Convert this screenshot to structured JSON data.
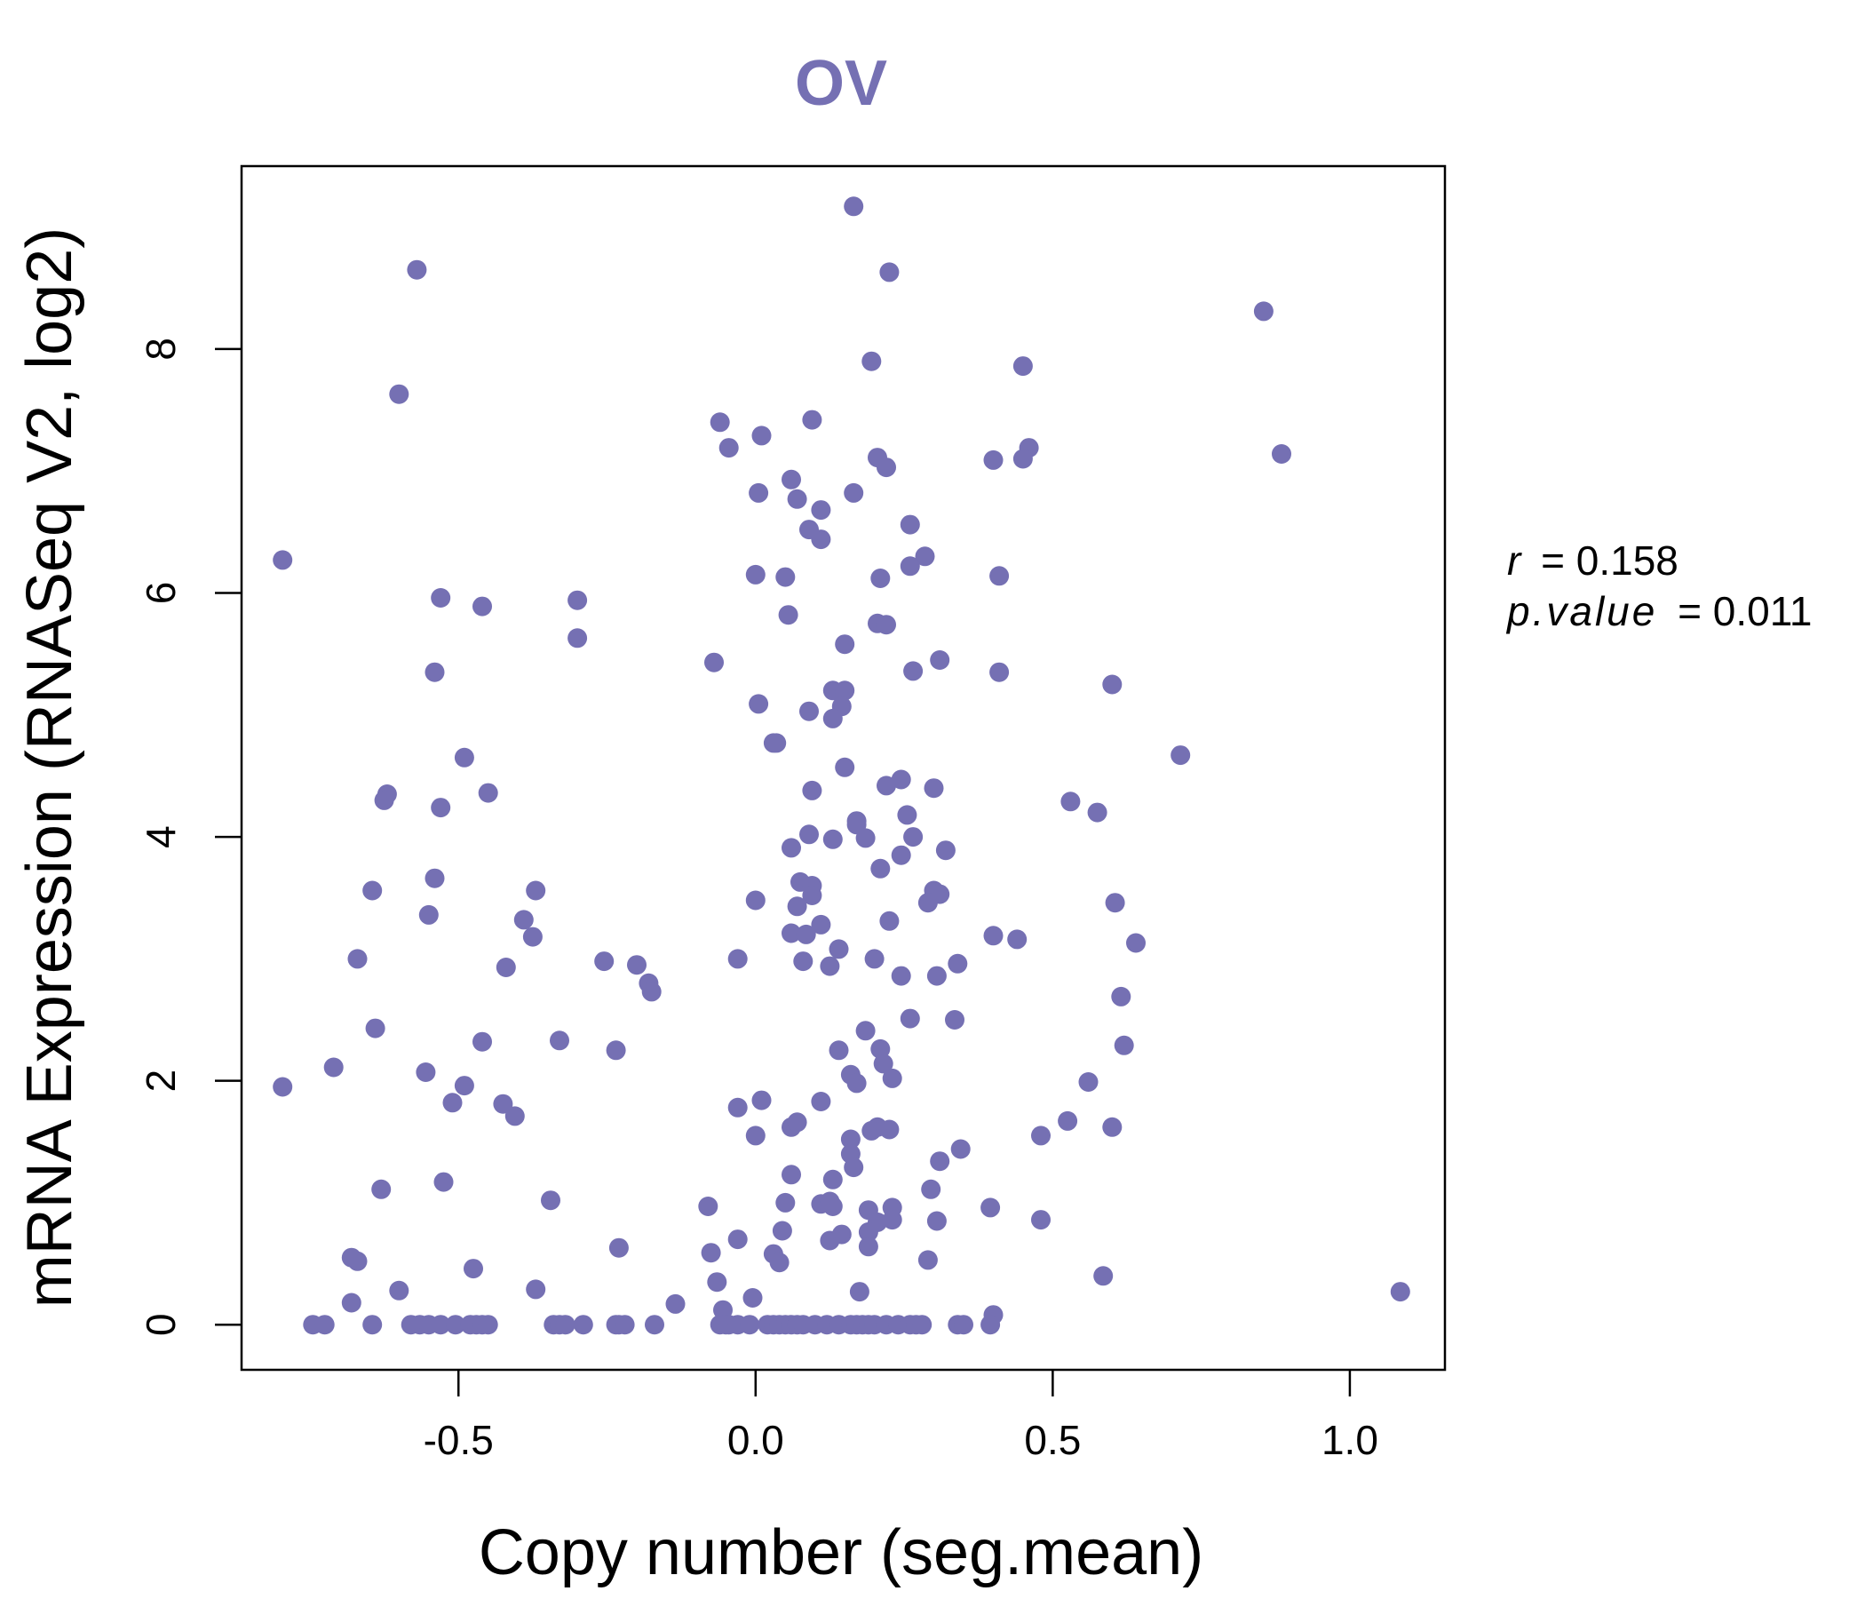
{
  "chart_data": {
    "type": "scatter",
    "title": "OV",
    "xlabel": "Copy number (seg.mean)",
    "ylabel": "mRNA Expression (RNASeq V2, log2)",
    "xlim": [
      -0.865,
      1.16
    ],
    "ylim": [
      -0.37,
      9.5
    ],
    "x_ticks": [
      -0.5,
      0.0,
      0.5,
      1.0
    ],
    "x_tick_labels": [
      "-0.5",
      "0.0",
      "0.5",
      "1.0"
    ],
    "y_ticks": [
      0,
      2,
      4,
      6,
      8
    ],
    "y_tick_labels": [
      "0",
      "2",
      "4",
      "6",
      "8"
    ],
    "grid": false,
    "legend": "none",
    "point_color": "#7570b3",
    "stats": {
      "r_label": "r",
      "r_value": "= 0.158",
      "p_label": "p.value",
      "p_value": "= 0.011"
    },
    "points": [
      [
        -0.796,
        6.27
      ],
      [
        -0.796,
        1.95
      ],
      [
        -0.57,
        8.65
      ],
      [
        -0.6,
        7.63
      ],
      [
        -0.53,
        5.96
      ],
      [
        -0.46,
        5.89
      ],
      [
        -0.54,
        5.35
      ],
      [
        -0.49,
        4.65
      ],
      [
        -0.62,
        4.35
      ],
      [
        -0.625,
        4.3
      ],
      [
        -0.53,
        4.24
      ],
      [
        -0.45,
        4.36
      ],
      [
        -0.645,
        3.56
      ],
      [
        -0.54,
        3.66
      ],
      [
        -0.55,
        3.36
      ],
      [
        -0.37,
        3.56
      ],
      [
        -0.39,
        3.32
      ],
      [
        -0.375,
        3.18
      ],
      [
        -0.42,
        2.93
      ],
      [
        -0.67,
        3.0
      ],
      [
        -0.64,
        2.43
      ],
      [
        -0.46,
        2.32
      ],
      [
        -0.33,
        2.33
      ],
      [
        -0.71,
        2.11
      ],
      [
        -0.555,
        2.07
      ],
      [
        -0.49,
        1.96
      ],
      [
        -0.51,
        1.82
      ],
      [
        -0.425,
        1.81
      ],
      [
        -0.405,
        1.71
      ],
      [
        -0.3,
        5.94
      ],
      [
        -0.3,
        5.63
      ],
      [
        -0.255,
        2.98
      ],
      [
        -0.2,
        2.95
      ],
      [
        -0.18,
        2.8
      ],
      [
        -0.175,
        2.73
      ],
      [
        -0.235,
        2.25
      ],
      [
        -0.525,
        1.17
      ],
      [
        -0.63,
        1.11
      ],
      [
        -0.345,
        1.02
      ],
      [
        -0.68,
        0.55
      ],
      [
        -0.67,
        0.52
      ],
      [
        -0.475,
        0.46
      ],
      [
        -0.23,
        0.63
      ],
      [
        -0.6,
        0.28
      ],
      [
        -0.37,
        0.29
      ],
      [
        -0.68,
        0.18
      ],
      [
        -0.135,
        0.17
      ],
      [
        -0.06,
        7.4
      ],
      [
        -0.045,
        7.19
      ],
      [
        0.01,
        7.29
      ],
      [
        0.095,
        7.42
      ],
      [
        0.005,
        6.82
      ],
      [
        0.06,
        6.93
      ],
      [
        0.07,
        6.77
      ],
      [
        0.11,
        6.68
      ],
      [
        0.09,
        6.52
      ],
      [
        0.11,
        6.44
      ],
      [
        0.0,
        6.15
      ],
      [
        0.05,
        6.13
      ],
      [
        0.055,
        5.82
      ],
      [
        -0.07,
        5.43
      ],
      [
        0.15,
        5.58
      ],
      [
        0.13,
        5.2
      ],
      [
        0.15,
        5.2
      ],
      [
        0.145,
        5.07
      ],
      [
        0.005,
        5.09
      ],
      [
        0.09,
        5.03
      ],
      [
        0.13,
        4.97
      ],
      [
        0.03,
        4.77
      ],
      [
        0.035,
        4.77
      ],
      [
        0.15,
        4.57
      ],
      [
        0.095,
        4.38
      ],
      [
        0.17,
        4.13
      ],
      [
        0.17,
        4.1
      ],
      [
        0.09,
        4.02
      ],
      [
        0.13,
        3.98
      ],
      [
        0.06,
        3.91
      ],
      [
        0.075,
        3.63
      ],
      [
        0.095,
        3.6
      ],
      [
        0.095,
        3.52
      ],
      [
        0.0,
        3.48
      ],
      [
        0.07,
        3.43
      ],
      [
        0.11,
        3.28
      ],
      [
        0.06,
        3.21
      ],
      [
        0.085,
        3.2
      ],
      [
        0.14,
        3.08
      ],
      [
        -0.03,
        3.0
      ],
      [
        0.08,
        2.98
      ],
      [
        0.125,
        2.94
      ],
      [
        0.14,
        2.25
      ],
      [
        0.16,
        2.05
      ],
      [
        0.17,
        1.98
      ],
      [
        0.11,
        1.83
      ],
      [
        0.01,
        1.84
      ],
      [
        -0.03,
        1.78
      ],
      [
        0.06,
        1.62
      ],
      [
        0.07,
        1.66
      ],
      [
        0.0,
        1.55
      ],
      [
        0.16,
        1.52
      ],
      [
        0.16,
        1.4
      ],
      [
        0.165,
        1.29
      ],
      [
        0.06,
        1.23
      ],
      [
        0.13,
        1.19
      ],
      [
        0.05,
        1.0
      ],
      [
        0.11,
        0.99
      ],
      [
        0.13,
        0.97
      ],
      [
        0.125,
        1.01
      ],
      [
        -0.08,
        0.97
      ],
      [
        0.045,
        0.77
      ],
      [
        0.145,
        0.74
      ],
      [
        0.125,
        0.69
      ],
      [
        -0.03,
        0.7
      ],
      [
        -0.075,
        0.59
      ],
      [
        0.03,
        0.58
      ],
      [
        0.04,
        0.51
      ],
      [
        -0.065,
        0.35
      ],
      [
        -0.005,
        0.22
      ],
      [
        -0.055,
        0.12
      ],
      [
        0.195,
        7.9
      ],
      [
        0.205,
        7.11
      ],
      [
        0.22,
        7.03
      ],
      [
        0.165,
        6.82
      ],
      [
        0.26,
        6.56
      ],
      [
        0.285,
        6.3
      ],
      [
        0.26,
        6.22
      ],
      [
        0.21,
        6.12
      ],
      [
        0.205,
        5.75
      ],
      [
        0.22,
        5.74
      ],
      [
        0.31,
        5.45
      ],
      [
        0.265,
        5.36
      ],
      [
        0.245,
        4.47
      ],
      [
        0.22,
        4.42
      ],
      [
        0.3,
        4.4
      ],
      [
        0.255,
        4.18
      ],
      [
        0.185,
        3.99
      ],
      [
        0.265,
        4.0
      ],
      [
        0.32,
        3.89
      ],
      [
        0.245,
        3.85
      ],
      [
        0.21,
        3.74
      ],
      [
        0.3,
        3.56
      ],
      [
        0.31,
        3.53
      ],
      [
        0.29,
        3.46
      ],
      [
        0.225,
        3.31
      ],
      [
        0.2,
        3.0
      ],
      [
        0.34,
        2.96
      ],
      [
        0.245,
        2.86
      ],
      [
        0.305,
        2.86
      ],
      [
        0.26,
        2.51
      ],
      [
        0.335,
        2.5
      ],
      [
        0.185,
        2.41
      ],
      [
        0.21,
        2.26
      ],
      [
        0.215,
        2.14
      ],
      [
        0.23,
        2.02
      ],
      [
        0.205,
        1.62
      ],
      [
        0.225,
        1.6
      ],
      [
        0.195,
        1.59
      ],
      [
        0.345,
        1.44
      ],
      [
        0.31,
        1.34
      ],
      [
        0.295,
        1.11
      ],
      [
        0.23,
        0.96
      ],
      [
        0.19,
        0.94
      ],
      [
        0.205,
        0.84
      ],
      [
        0.23,
        0.86
      ],
      [
        0.305,
        0.85
      ],
      [
        0.19,
        0.76
      ],
      [
        0.19,
        0.64
      ],
      [
        0.29,
        0.53
      ],
      [
        0.175,
        0.27
      ],
      [
        0.165,
        9.17
      ],
      [
        0.225,
        8.63
      ],
      [
        0.45,
        7.86
      ],
      [
        0.46,
        7.19
      ],
      [
        0.4,
        7.09
      ],
      [
        0.45,
        7.1
      ],
      [
        0.41,
        6.14
      ],
      [
        0.41,
        5.35
      ],
      [
        0.53,
        4.29
      ],
      [
        0.575,
        4.2
      ],
      [
        0.6,
        5.25
      ],
      [
        0.715,
        4.67
      ],
      [
        0.605,
        3.46
      ],
      [
        0.64,
        3.13
      ],
      [
        0.4,
        3.19
      ],
      [
        0.44,
        3.16
      ],
      [
        0.615,
        2.69
      ],
      [
        0.62,
        2.29
      ],
      [
        0.56,
        1.99
      ],
      [
        0.525,
        1.67
      ],
      [
        0.48,
        1.55
      ],
      [
        0.6,
        1.62
      ],
      [
        0.395,
        0.96
      ],
      [
        0.48,
        0.86
      ],
      [
        0.585,
        0.4
      ],
      [
        0.4,
        0.08
      ],
      [
        0.855,
        8.31
      ],
      [
        0.885,
        7.14
      ],
      [
        1.085,
        0.27
      ],
      [
        -0.745,
        0
      ],
      [
        -0.725,
        0
      ],
      [
        -0.645,
        0
      ],
      [
        -0.58,
        0
      ],
      [
        -0.565,
        0
      ],
      [
        -0.55,
        0
      ],
      [
        -0.53,
        0
      ],
      [
        -0.505,
        0
      ],
      [
        -0.48,
        0
      ],
      [
        -0.47,
        0
      ],
      [
        -0.46,
        0
      ],
      [
        -0.45,
        0
      ],
      [
        -0.34,
        0
      ],
      [
        -0.33,
        0
      ],
      [
        -0.32,
        0
      ],
      [
        -0.29,
        0
      ],
      [
        -0.235,
        0
      ],
      [
        -0.23,
        0
      ],
      [
        -0.22,
        0
      ],
      [
        -0.17,
        0
      ],
      [
        -0.06,
        0
      ],
      [
        -0.05,
        0
      ],
      [
        -0.045,
        0
      ],
      [
        -0.03,
        0
      ],
      [
        -0.01,
        0
      ],
      [
        0.02,
        0
      ],
      [
        0.03,
        0
      ],
      [
        0.04,
        0
      ],
      [
        0.05,
        0
      ],
      [
        0.06,
        0
      ],
      [
        0.07,
        0
      ],
      [
        0.08,
        0
      ],
      [
        0.1,
        0
      ],
      [
        0.12,
        0
      ],
      [
        0.14,
        0
      ],
      [
        0.16,
        0
      ],
      [
        0.17,
        0
      ],
      [
        0.18,
        0
      ],
      [
        0.19,
        0
      ],
      [
        0.2,
        0
      ],
      [
        0.22,
        0
      ],
      [
        0.24,
        0
      ],
      [
        0.26,
        0
      ],
      [
        0.27,
        0
      ],
      [
        0.28,
        0
      ],
      [
        0.34,
        0
      ],
      [
        0.35,
        0
      ],
      [
        0.395,
        0
      ]
    ]
  }
}
